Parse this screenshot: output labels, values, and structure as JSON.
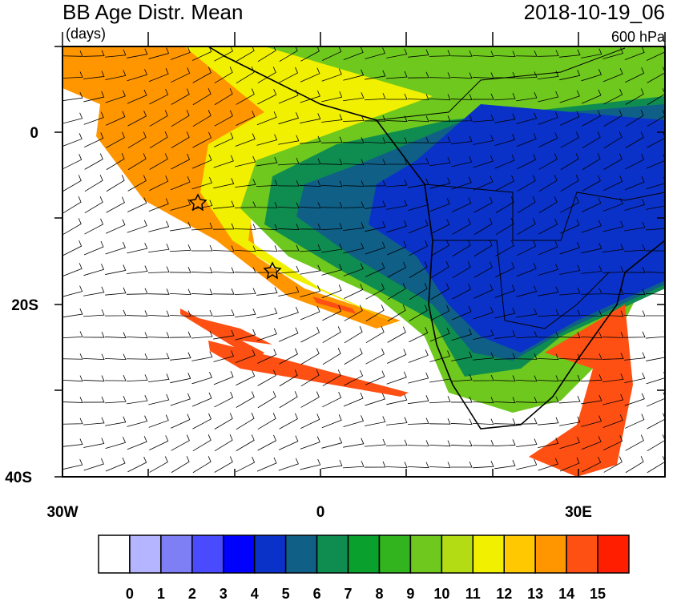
{
  "header": {
    "title": "BB Age Distr. Mean",
    "units": "(days)",
    "datetime": "2018-10-19_06",
    "level": "600 hPa"
  },
  "map": {
    "lat_labels": [
      "0",
      "20S",
      "40S"
    ],
    "lon_labels": [
      "30W",
      "0",
      "30E"
    ]
  },
  "colorbar": {
    "colors": [
      "#ffffff",
      "#b4b4ff",
      "#7f7ff5",
      "#4a4aff",
      "#0000ff",
      "#0a32c8",
      "#0f5f87",
      "#0f8c50",
      "#0aa02d",
      "#32b41e",
      "#6ec81e",
      "#b4dc14",
      "#f0f000",
      "#ffc800",
      "#ff9600",
      "#ff5014",
      "#ff1e00"
    ],
    "labels": [
      0,
      1,
      2,
      3,
      4,
      5,
      6,
      7,
      8,
      9,
      10,
      11,
      12,
      13,
      14,
      15
    ]
  }
}
